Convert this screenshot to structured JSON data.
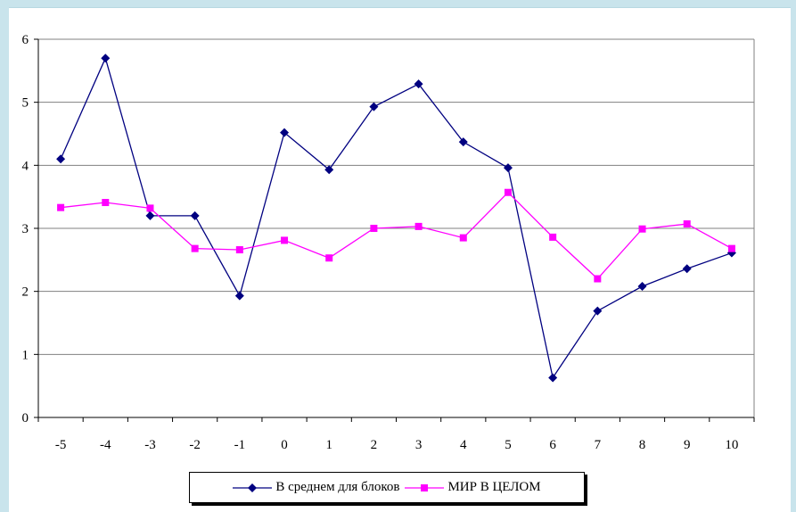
{
  "colors": {
    "background": "#c9e4ec",
    "series1": "#000080",
    "series2": "#ff00ff",
    "grid": "#808080"
  },
  "chart_data": {
    "type": "line",
    "title": "",
    "xlabel": "",
    "ylabel": "",
    "x": [
      -5,
      -4,
      -3,
      -2,
      -1,
      0,
      1,
      2,
      3,
      4,
      5,
      6,
      7,
      8,
      9,
      10
    ],
    "ylim": [
      0,
      6
    ],
    "yticks": [
      0,
      1,
      2,
      3,
      4,
      5,
      6
    ],
    "grid": "horizontal",
    "legend_position": "bottom",
    "series": [
      {
        "name": "В среднем для блоков",
        "color": "#000080",
        "marker": "diamond",
        "values": [
          4.1,
          5.7,
          3.2,
          3.2,
          1.93,
          4.52,
          3.93,
          4.93,
          5.29,
          4.37,
          3.96,
          0.63,
          1.69,
          2.08,
          2.36,
          2.61
        ]
      },
      {
        "name": "МИР В ЦЕЛОМ",
        "color": "#ff00ff",
        "marker": "square",
        "values": [
          3.33,
          3.41,
          3.32,
          2.68,
          2.66,
          2.81,
          2.53,
          3.0,
          3.03,
          2.85,
          3.57,
          2.86,
          2.2,
          2.99,
          3.07,
          2.68
        ]
      }
    ]
  }
}
